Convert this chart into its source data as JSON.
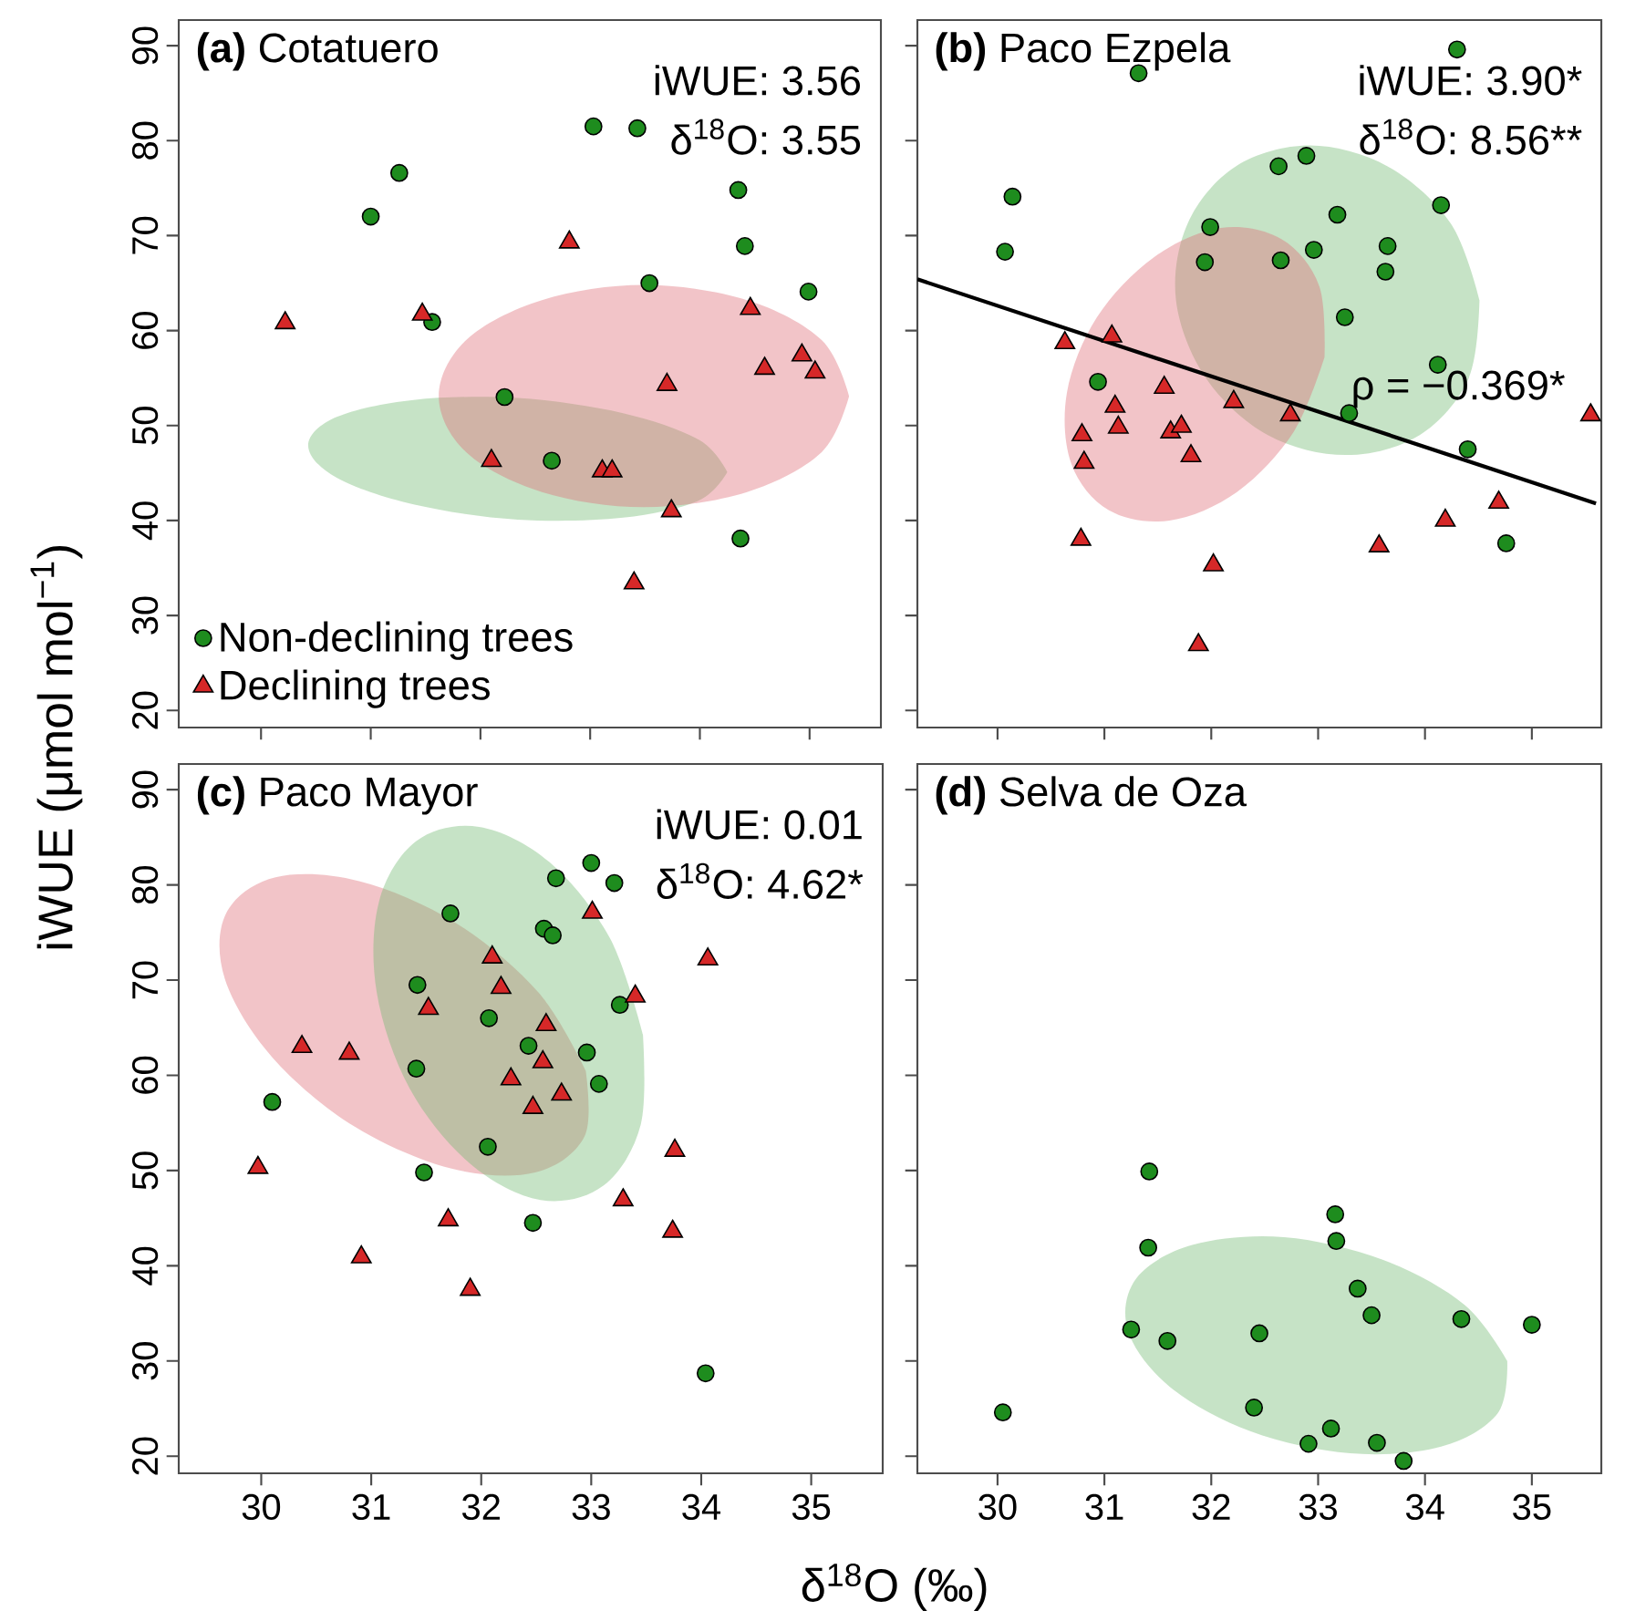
{
  "chart_data": [
    {
      "type": "scatter",
      "title": "**(a)** Cotatuero",
      "ylabel": "iWUE (μmol mol$^{−1}$)",
      "annotations": [
        "iWUE: 3.56",
        "δ$^{18}$O: 3.55"
      ],
      "xlim": [
        29.25,
        35.65
      ],
      "ylim": [
        18.2,
        92.7
      ],
      "xticks": [
        30,
        31,
        32,
        33,
        34,
        35
      ],
      "yticks": [
        20,
        30,
        40,
        50,
        60,
        70,
        80,
        90
      ],
      "tick_labels": "y",
      "legend": "bottom left",
      "series": [
        {
          "type": "area",
          "color": "#70b970",
          "x": [
            34.25,
            33.99,
            33.3,
            32.34,
            31.39,
            30.69,
            30.43,
            30.69,
            31.39,
            32.34,
            33.3,
            33.99
          ],
          "values": [
            45.1,
            48.5,
            51.3,
            52.9,
            52.7,
            50.9,
            47.9,
            44.5,
            41.7,
            40.1,
            40.3,
            42.1
          ]
        },
        {
          "type": "area",
          "color": "#de6b75",
          "x": [
            35.36,
            35.11,
            34.43,
            33.49,
            32.56,
            31.87,
            31.62,
            31.87,
            32.56,
            33.49,
            34.43,
            35.11
          ],
          "values": [
            53.1,
            59.0,
            63.2,
            64.8,
            63.2,
            59.0,
            53.1,
            47.2,
            43.0,
            41.4,
            43.0,
            47.2
          ]
        },
        {
          "name": "Non-declining trees",
          "marker": "circle",
          "color": "#1e8c1e",
          "x": [
            33.03,
            33.43,
            31.26,
            31.0,
            34.35,
            34.41,
            33.54,
            34.99,
            31.56,
            32.22,
            32.65,
            34.37
          ],
          "values": [
            81.5,
            81.3,
            76.6,
            72.0,
            74.8,
            68.9,
            65.0,
            64.1,
            60.9,
            53.0,
            46.3,
            38.1
          ]
        },
        {
          "name": "Declining trees",
          "marker": "triangle",
          "color": "#d62828",
          "x": [
            30.22,
            31.47,
            32.81,
            34.46,
            34.93,
            35.05,
            34.59,
            33.7,
            32.1,
            33.11,
            33.2,
            33.74,
            33.4
          ],
          "values": [
            60.8,
            61.7,
            69.3,
            62.3,
            57.4,
            55.6,
            56.0,
            54.3,
            46.3,
            45.2,
            45.2,
            41.0,
            33.4
          ]
        }
      ]
    },
    {
      "type": "scatter",
      "title": "**(b)** Paco Ezpela",
      "annotations": [
        "iWUE: 3.90*",
        "δ$^{18}$O: 8.56**",
        "ρ = −0.369*"
      ],
      "xlim": [
        29.25,
        35.65
      ],
      "ylim": [
        18.2,
        92.7
      ],
      "xticks": [
        30,
        31,
        32,
        33,
        34,
        35
      ],
      "yticks": [
        20,
        30,
        40,
        50,
        60,
        70,
        80,
        90
      ],
      "tick_labels": false,
      "series": [
        {
          "type": "area",
          "color": "#70b970",
          "x": [
            34.51,
            34.24,
            33.65,
            32.92,
            32.23,
            31.78,
            31.67,
            31.95,
            32.53,
            33.26,
            33.95,
            34.41
          ],
          "values": [
            63.2,
            71.3,
            77.3,
            79.5,
            77.3,
            71.3,
            63.2,
            55.0,
            49.0,
            46.9,
            49.0,
            55.0
          ]
        },
        {
          "type": "area",
          "color": "#de6b75",
          "x": [
            33.06,
            33.01,
            32.66,
            32.09,
            31.46,
            30.93,
            30.65,
            30.69,
            31.04,
            31.61,
            32.24,
            32.77
          ],
          "values": [
            57.2,
            64.7,
            69.6,
            70.8,
            67.7,
            61.4,
            53.5,
            46.0,
            41.1,
            40.0,
            43.0,
            49.3
          ]
        },
        {
          "type": "line",
          "color": "#000000",
          "x": [
            29.25,
            35.6
          ],
          "values": [
            65.4,
            41.8
          ]
        },
        {
          "marker": "circle",
          "color": "#1e8c1e",
          "x": [
            34.3,
            31.32,
            30.14,
            30.07,
            32.63,
            32.89,
            31.99,
            31.94,
            32.65,
            32.96,
            33.18,
            34.15,
            33.65,
            33.63,
            33.25,
            34.12,
            33.29,
            30.94,
            34.4,
            34.76
          ],
          "values": [
            89.6,
            87.1,
            74.1,
            68.3,
            77.3,
            78.4,
            70.9,
            67.2,
            67.4,
            68.5,
            72.2,
            73.2,
            68.9,
            66.2,
            61.4,
            56.4,
            51.3,
            54.6,
            47.5,
            37.6
          ]
        },
        {
          "marker": "triangle",
          "color": "#d62828",
          "x": [
            30.63,
            31.07,
            31.56,
            31.1,
            30.79,
            31.13,
            31.62,
            31.72,
            30.81,
            31.81,
            32.21,
            32.74,
            30.78,
            32.02,
            31.88,
            33.57,
            34.19,
            34.69,
            35.55
          ],
          "values": [
            58.7,
            59.4,
            54.0,
            52.0,
            49.0,
            49.8,
            49.3,
            49.9,
            46.1,
            46.8,
            52.5,
            51.1,
            38.0,
            35.3,
            26.9,
            37.3,
            40.0,
            41.9,
            51.1
          ]
        }
      ]
    },
    {
      "type": "scatter",
      "title": "**(c)** Paco Mayor",
      "xlabel": "δ$^{18}$O (‰)",
      "annotations": [
        "iWUE: 0.01",
        "δ$^{18}$O: 4.62*"
      ],
      "xlim": [
        29.25,
        35.65
      ],
      "ylim": [
        18.2,
        92.7
      ],
      "xticks": [
        30,
        31,
        32,
        33,
        34,
        35
      ],
      "yticks": [
        20,
        30,
        40,
        50,
        60,
        70,
        80,
        90
      ],
      "series": [
        {
          "type": "area",
          "color": "#de6b75",
          "x": [
            32.95,
            32.52,
            31.77,
            30.89,
            30.13,
            29.68,
            29.67,
            30.1,
            30.85,
            31.73,
            32.49,
            32.94
          ],
          "values": [
            60.5,
            68.7,
            76.0,
            80.4,
            80.8,
            77.0,
            70.1,
            61.9,
            54.6,
            50.2,
            49.8,
            53.6
          ]
        },
        {
          "type": "area",
          "color": "#70b970",
          "x": [
            33.47,
            33.17,
            32.62,
            31.98,
            31.41,
            31.07,
            31.05,
            31.35,
            31.9,
            32.54,
            33.11,
            33.45
          ],
          "values": [
            64.3,
            74.4,
            82.4,
            86.1,
            84.6,
            78.2,
            68.7,
            58.6,
            50.7,
            46.9,
            48.4,
            54.8
          ]
        },
        {
          "marker": "circle",
          "color": "#1e8c1e",
          "x": [
            33.0,
            32.68,
            33.21,
            32.57,
            32.65,
            31.72,
            31.42,
            32.07,
            33.26,
            32.43,
            32.96,
            31.41,
            33.07,
            30.1,
            32.06,
            31.48,
            32.47,
            34.04
          ],
          "values": [
            82.3,
            80.7,
            80.2,
            75.4,
            74.7,
            77.0,
            69.5,
            66.0,
            67.4,
            63.1,
            62.4,
            60.7,
            59.1,
            57.2,
            52.5,
            49.8,
            44.5,
            28.7
          ]
        },
        {
          "marker": "triangle",
          "color": "#d62828",
          "x": [
            33.01,
            34.06,
            32.1,
            32.18,
            33.4,
            31.52,
            32.59,
            30.37,
            30.8,
            32.56,
            32.27,
            32.73,
            32.47,
            33.76,
            29.97,
            33.29,
            31.7,
            33.74,
            30.91,
            31.9
          ],
          "values": [
            77.1,
            72.2,
            72.4,
            69.2,
            68.3,
            67.0,
            65.3,
            63.0,
            62.3,
            61.4,
            59.6,
            58.0,
            56.6,
            52.1,
            50.3,
            46.9,
            44.8,
            43.6,
            40.9,
            37.5
          ]
        }
      ]
    },
    {
      "type": "scatter",
      "title": "**(d)** Selva de Oza",
      "xlim": [
        29.25,
        35.65
      ],
      "ylim": [
        18.2,
        92.7
      ],
      "xticks": [
        30,
        31,
        32,
        33,
        34,
        35
      ],
      "yticks": [
        20,
        30,
        40,
        50,
        60,
        70,
        80,
        90
      ],
      "tick_labels": "x",
      "series": [
        {
          "type": "area",
          "color": "#70b970",
          "x": [
            34.77,
            34.37,
            33.61,
            32.68,
            31.83,
            31.3,
            31.22,
            31.61,
            32.37,
            33.3,
            34.15,
            34.68
          ],
          "values": [
            30.0,
            35.9,
            40.6,
            43.0,
            42.2,
            38.7,
            33.2,
            27.3,
            22.6,
            20.3,
            21.0,
            24.5
          ]
        },
        {
          "marker": "circle",
          "color": "#1e8c1e",
          "x": [
            30.05,
            31.42,
            31.41,
            31.25,
            31.59,
            32.45,
            32.4,
            32.91,
            33.12,
            33.16,
            33.17,
            33.37,
            33.5,
            34.34,
            35.0,
            33.55,
            33.8
          ],
          "values": [
            24.6,
            49.9,
            41.9,
            33.3,
            32.1,
            32.9,
            25.1,
            21.3,
            22.9,
            45.4,
            42.6,
            37.6,
            34.8,
            34.4,
            33.8,
            21.4,
            19.5
          ]
        }
      ]
    }
  ]
}
